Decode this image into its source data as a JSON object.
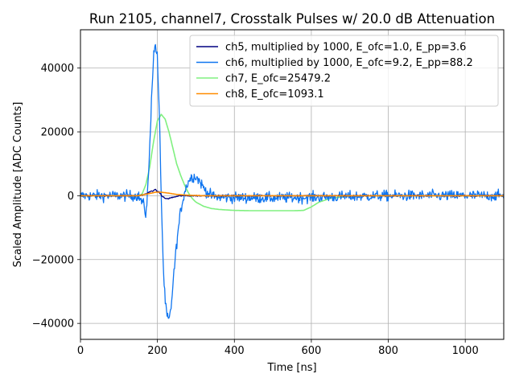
{
  "chart_data": {
    "type": "line",
    "title": "Run 2105, channel7, Crosstalk Pulses w/ 20.0 dB Attenuation",
    "xlabel": "Time [ns]",
    "ylabel": "Scaled Amplitude [ADC Counts]",
    "xlim": [
      0,
      1100
    ],
    "ylim": [
      -45000,
      52000
    ],
    "xticks": [
      0,
      200,
      400,
      600,
      800,
      1000
    ],
    "yticks": [
      -40000,
      -20000,
      0,
      20000,
      40000
    ],
    "xtick_labels": [
      "0",
      "200",
      "400",
      "600",
      "800",
      "1000"
    ],
    "ytick_labels": [
      "−40000",
      "−20000",
      "0",
      "20000",
      "40000"
    ],
    "grid": true,
    "legend_position": "top-right",
    "series": [
      {
        "name": "ch5, multiplied by 1000,  E_ofc=1.0, E_pp=3.6",
        "color": "#000080",
        "noise": 150,
        "x": [
          0,
          150,
          170,
          185,
          195,
          205,
          215,
          225,
          240,
          260,
          300,
          400,
          600,
          800,
          1100
        ],
        "y": [
          0,
          0,
          500,
          1500,
          1800,
          1000,
          -500,
          -1000,
          -500,
          0,
          0,
          0,
          0,
          0,
          0
        ]
      },
      {
        "name": "ch6, multiplied by 1000,  E_ofc=9.2, E_pp=88.2",
        "color": "#0f75f0",
        "noise": 1200,
        "x": [
          0,
          150,
          165,
          170,
          175,
          180,
          185,
          190,
          195,
          200,
          205,
          210,
          215,
          220,
          225,
          230,
          235,
          240,
          250,
          260,
          270,
          280,
          290,
          300,
          310,
          320,
          330,
          340,
          350,
          360,
          400,
          500,
          600,
          800,
          1100
        ],
        "y": [
          0,
          0,
          -3000,
          -6000,
          2000,
          15000,
          32000,
          44000,
          47500,
          43000,
          25000,
          0,
          -22000,
          -33000,
          -38000,
          -39000,
          -36000,
          -28000,
          -15000,
          -5000,
          1000,
          4500,
          6000,
          6000,
          4500,
          2500,
          1000,
          0,
          -300,
          -500,
          -600,
          -700,
          -500,
          0,
          0
        ]
      },
      {
        "name": "ch7,  E_ofc=25479.2",
        "color": "#80f080",
        "noise": 0,
        "x": [
          0,
          150,
          160,
          170,
          180,
          190,
          200,
          210,
          220,
          230,
          240,
          250,
          260,
          270,
          280,
          290,
          300,
          320,
          340,
          360,
          400,
          450,
          500,
          550,
          580,
          600,
          620,
          650,
          700,
          750,
          1100
        ],
        "y": [
          0,
          0,
          500,
          3500,
          9000,
          17000,
          23500,
          25500,
          24000,
          20000,
          15000,
          10000,
          6500,
          3500,
          1000,
          -800,
          -2000,
          -3300,
          -4000,
          -4300,
          -4600,
          -4700,
          -4700,
          -4700,
          -4600,
          -3500,
          -2000,
          -800,
          -100,
          0,
          0
        ]
      },
      {
        "name": "ch8,  E_ofc=1093.1",
        "color": "#ff8c00",
        "noise": 0,
        "x": [
          0,
          150,
          180,
          195,
          210,
          230,
          250,
          280,
          320,
          1100
        ],
        "y": [
          0,
          0,
          700,
          1100,
          1100,
          800,
          400,
          150,
          0,
          0
        ]
      }
    ]
  }
}
